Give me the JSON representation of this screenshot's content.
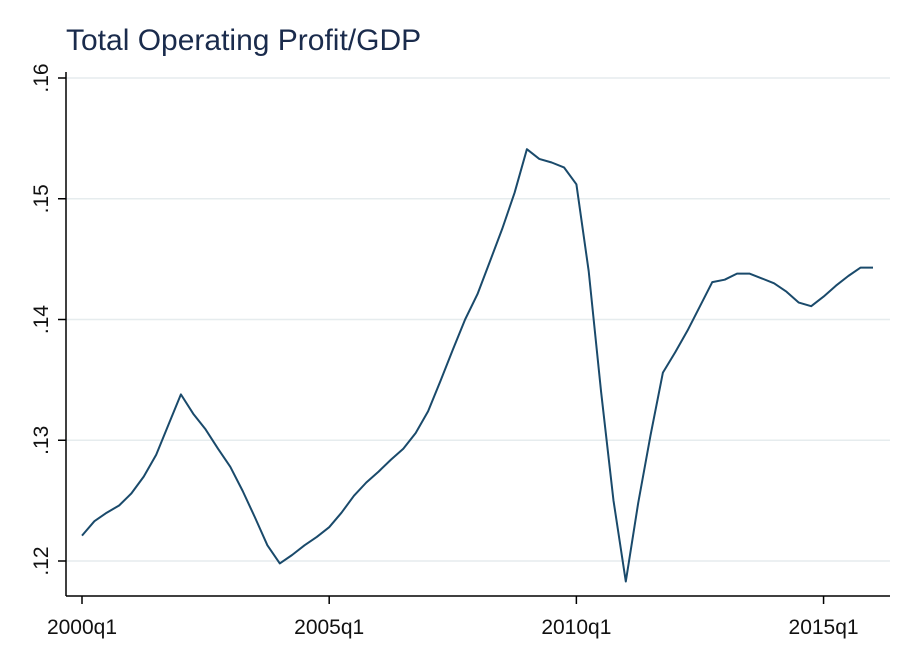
{
  "chart_data": {
    "type": "line",
    "title": "Total Operating Profit/GDP",
    "xlabel": "",
    "ylabel": "",
    "ylim": [
      0.117,
      0.161
    ],
    "xlim": [
      0,
      64
    ],
    "yticks": [
      {
        "value": 0.12,
        "label": ".12"
      },
      {
        "value": 0.13,
        "label": ".13"
      },
      {
        "value": 0.14,
        "label": ".14"
      },
      {
        "value": 0.15,
        "label": ".15"
      },
      {
        "value": 0.16,
        "label": ".16"
      }
    ],
    "xticks": [
      {
        "value": 0,
        "label": "2000q1"
      },
      {
        "value": 20,
        "label": "2005q1"
      },
      {
        "value": 40,
        "label": "2010q1"
      },
      {
        "value": 60,
        "label": "2015q1"
      }
    ],
    "grid": true,
    "line_color": "#1a4a6b",
    "series": [
      {
        "x": [
          0,
          1,
          2,
          3,
          4,
          5,
          6,
          7,
          8,
          9,
          10,
          11,
          12,
          13,
          14,
          15,
          16,
          17,
          18,
          19,
          20,
          21,
          22,
          23,
          24,
          25,
          26,
          27,
          28,
          29,
          30,
          31,
          32,
          33,
          34,
          35,
          36,
          37,
          38,
          39,
          40,
          41,
          42,
          43,
          44,
          45,
          46,
          47,
          48,
          49,
          50,
          51,
          52,
          53,
          54,
          55,
          56,
          57,
          58,
          59,
          60,
          61,
          62,
          63,
          64
        ],
        "values": [
          0.1221,
          0.1233,
          0.124,
          0.1246,
          0.1256,
          0.127,
          0.1288,
          0.1313,
          0.1338,
          0.1322,
          0.1309,
          0.1293,
          0.1278,
          0.1258,
          0.1236,
          0.1213,
          0.1198,
          0.1205,
          0.1213,
          0.122,
          0.1228,
          0.124,
          0.1254,
          0.1265,
          0.1274,
          0.1284,
          0.1293,
          0.1306,
          0.1324,
          0.1349,
          0.1375,
          0.14,
          0.1421,
          0.1448,
          0.1475,
          0.1505,
          0.1541,
          0.1533,
          0.153,
          0.1526,
          0.1512,
          0.144,
          0.134,
          0.125,
          0.1183,
          0.1248,
          0.1304,
          0.1356,
          0.1373,
          0.1391,
          0.1411,
          0.1431,
          0.1433,
          0.1438,
          0.1438,
          0.1434,
          0.143,
          0.1423,
          0.1414,
          0.1411,
          0.1419,
          0.1428,
          0.1436,
          0.1443,
          0.1443
        ]
      }
    ]
  }
}
